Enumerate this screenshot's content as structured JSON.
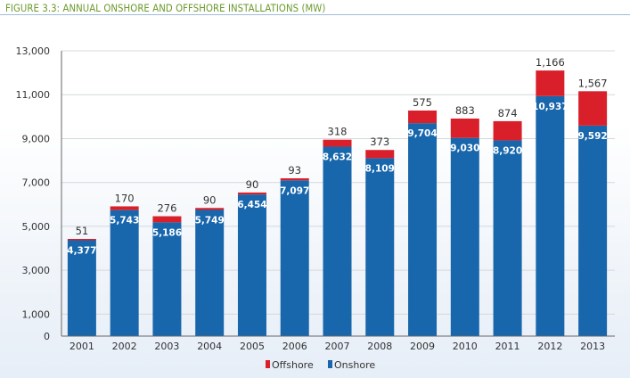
{
  "figure_title": "FIGURE 3.3: ANNUAL ONSHORE AND OFFSHORE INSTALLATIONS (MW)",
  "colors": {
    "onshore": "#1866ab",
    "offshore": "#d9202a",
    "title": "#6a9a2a"
  },
  "chart_data": {
    "type": "bar",
    "stacked": true,
    "title": "FIGURE 3.3: ANNUAL ONSHORE AND OFFSHORE INSTALLATIONS (MW)",
    "xlabel": "",
    "ylabel": "",
    "categories": [
      "2001",
      "2002",
      "2003",
      "2004",
      "2005",
      "2006",
      "2007",
      "2008",
      "2009",
      "2010",
      "2011",
      "2012",
      "2013"
    ],
    "series": [
      {
        "name": "Onshore",
        "values": [
          4377,
          5743,
          5186,
          5749,
          6454,
          7097,
          8632,
          8109,
          9704,
          9030,
          8920,
          10937,
          9592
        ]
      },
      {
        "name": "Offshore",
        "values": [
          51,
          170,
          276,
          90,
          90,
          93,
          318,
          373,
          575,
          883,
          874,
          1166,
          1567
        ]
      }
    ],
    "onshore_labels": [
      "4,377",
      "5,743",
      "5,186",
      "5,749",
      "6,454",
      "7,097",
      "8,632",
      "8,109",
      "9,704",
      "9,030",
      "8,920",
      "10,937",
      "9,592"
    ],
    "offshore_labels": [
      "51",
      "170",
      "276",
      "90",
      "90",
      "93",
      "318",
      "373",
      "575",
      "883",
      "874",
      "1,166",
      "1,567"
    ],
    "ylim": [
      0,
      13000
    ],
    "yticks": [
      0,
      1000,
      3000,
      5000,
      7000,
      9000,
      11000,
      13000
    ],
    "ytick_labels": [
      "0",
      "1,000",
      "3,000",
      "5,000",
      "7,000",
      "9,000",
      "11,000",
      "13,000"
    ],
    "grid": true,
    "legend": {
      "placement": "bottom-center",
      "entries": [
        {
          "label": "Offshore",
          "series": "Offshore"
        },
        {
          "label": "Onshore",
          "series": "Onshore"
        }
      ]
    }
  }
}
